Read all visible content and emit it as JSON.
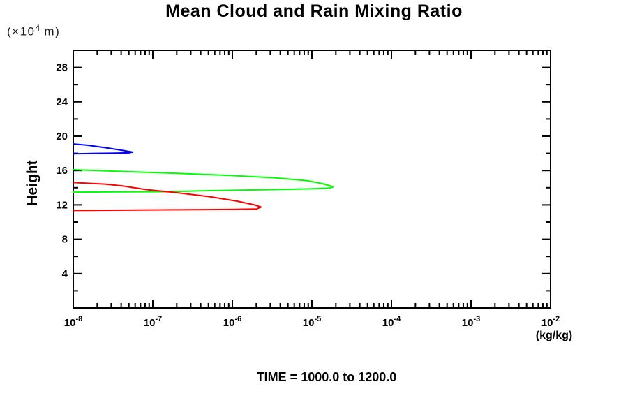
{
  "chart": {
    "title": "Mean Cloud and Rain Mixing Ratio",
    "y_unit": {
      "open": "(×10",
      "exp": "4",
      "close": " m)"
    },
    "ylabel": "Height",
    "x_unit": "(kg/kg)",
    "caption": "TIME = 1000.0 to 1200.0"
  },
  "chart_data": {
    "type": "line",
    "title": "Mean Cloud and Rain Mixing Ratio",
    "xlabel": "(kg/kg)",
    "ylabel": "Height (×10^4 m)",
    "caption": "TIME = 1000.0 to 1200.0",
    "x_scale": "log10",
    "xlim": [
      1e-08,
      0.01
    ],
    "ylim": [
      0,
      30
    ],
    "x_tick_exponents": [
      -8,
      -7,
      -6,
      -5,
      -4,
      -3,
      -2
    ],
    "x_tick_base": "10",
    "y_major_ticks": [
      4,
      8,
      12,
      16,
      20,
      24,
      28
    ],
    "y_minor_ticks": [
      2,
      6,
      10,
      14,
      18,
      22,
      26
    ],
    "grid": false,
    "legend": "none",
    "axis_color": "#000000",
    "series": [
      {
        "name": "blue-curve",
        "color": "#0000ff",
        "points": [
          [
            1e-08,
            19.1
          ],
          [
            1.5e-08,
            18.95
          ],
          [
            2.5e-08,
            18.67
          ],
          [
            3.7e-08,
            18.42
          ],
          [
            5e-08,
            18.22
          ],
          [
            5.6e-08,
            18.14
          ],
          [
            5e-08,
            18.06
          ],
          [
            3e-08,
            18.02
          ],
          [
            1.7e-08,
            17.98
          ],
          [
            1e-08,
            17.94
          ]
        ]
      },
      {
        "name": "green-curve",
        "color": "#00ff00",
        "points": [
          [
            1e-08,
            16.1
          ],
          [
            4.6e-08,
            15.88
          ],
          [
            1.9e-07,
            15.68
          ],
          [
            9.4e-07,
            15.43
          ],
          [
            3.5e-06,
            15.15
          ],
          [
            8.6e-06,
            14.83
          ],
          [
            1.3e-05,
            14.51
          ],
          [
            1.65e-05,
            14.26
          ],
          [
            1.85e-05,
            14.1
          ],
          [
            1.6e-05,
            13.94
          ],
          [
            8.6e-06,
            13.86
          ],
          [
            3.2e-06,
            13.78
          ],
          [
            5.1e-07,
            13.66
          ],
          [
            1.5e-07,
            13.54
          ],
          [
            1e-08,
            13.49
          ]
        ]
      },
      {
        "name": "red-curve",
        "color": "#ff0000",
        "points": [
          [
            1e-08,
            14.6
          ],
          [
            2.5e-08,
            14.42
          ],
          [
            4.1e-08,
            14.22
          ],
          [
            6.8e-08,
            13.9
          ],
          [
            8.3e-08,
            13.78
          ],
          [
            1.9e-07,
            13.45
          ],
          [
            5.1e-07,
            12.97
          ],
          [
            1.15e-06,
            12.44
          ],
          [
            1.9e-06,
            12.0
          ],
          [
            2.3e-06,
            11.76
          ],
          [
            2e-06,
            11.52
          ],
          [
            9.4e-07,
            11.47
          ],
          [
            1.9e-07,
            11.43
          ],
          [
            4.6e-08,
            11.39
          ],
          [
            1e-08,
            11.35
          ]
        ]
      }
    ]
  }
}
